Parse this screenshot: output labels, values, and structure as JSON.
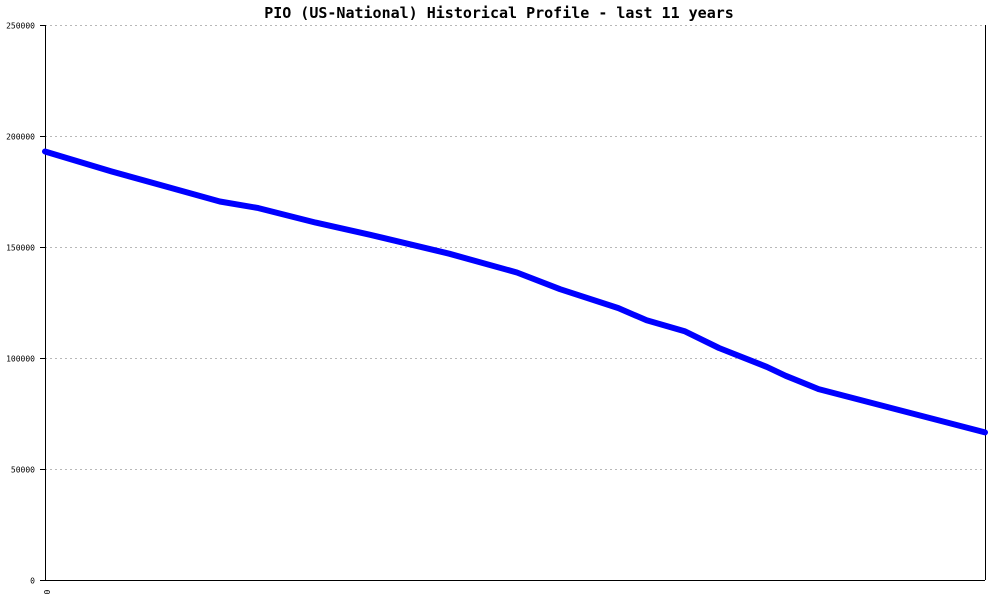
{
  "chart_data": {
    "type": "line",
    "title": "PIO (US-National) Historical Profile - last 11 years",
    "xlabel": "",
    "ylabel": "",
    "ylim": [
      0,
      250000
    ],
    "y_ticks": [
      0,
      50000,
      100000,
      150000,
      200000,
      250000
    ],
    "y_tick_labels": [
      "0",
      "50000",
      "100000",
      "150000",
      "200000",
      "250000"
    ],
    "x_tick_labels": [
      "0"
    ],
    "grid": true,
    "legend": "none",
    "series": [
      {
        "color": "#0000ff",
        "x": [
          0,
          0.071,
          0.131,
          0.186,
          0.227,
          0.288,
          0.346,
          0.43,
          0.502,
          0.548,
          0.61,
          0.64,
          0.681,
          0.717,
          0.768,
          0.788,
          0.823,
          1
        ],
        "values": [
          193000,
          184000,
          177000,
          170500,
          167500,
          161000,
          155500,
          147000,
          138500,
          131000,
          122500,
          117000,
          112000,
          104500,
          96000,
          92000,
          86000,
          66500
        ]
      }
    ]
  }
}
